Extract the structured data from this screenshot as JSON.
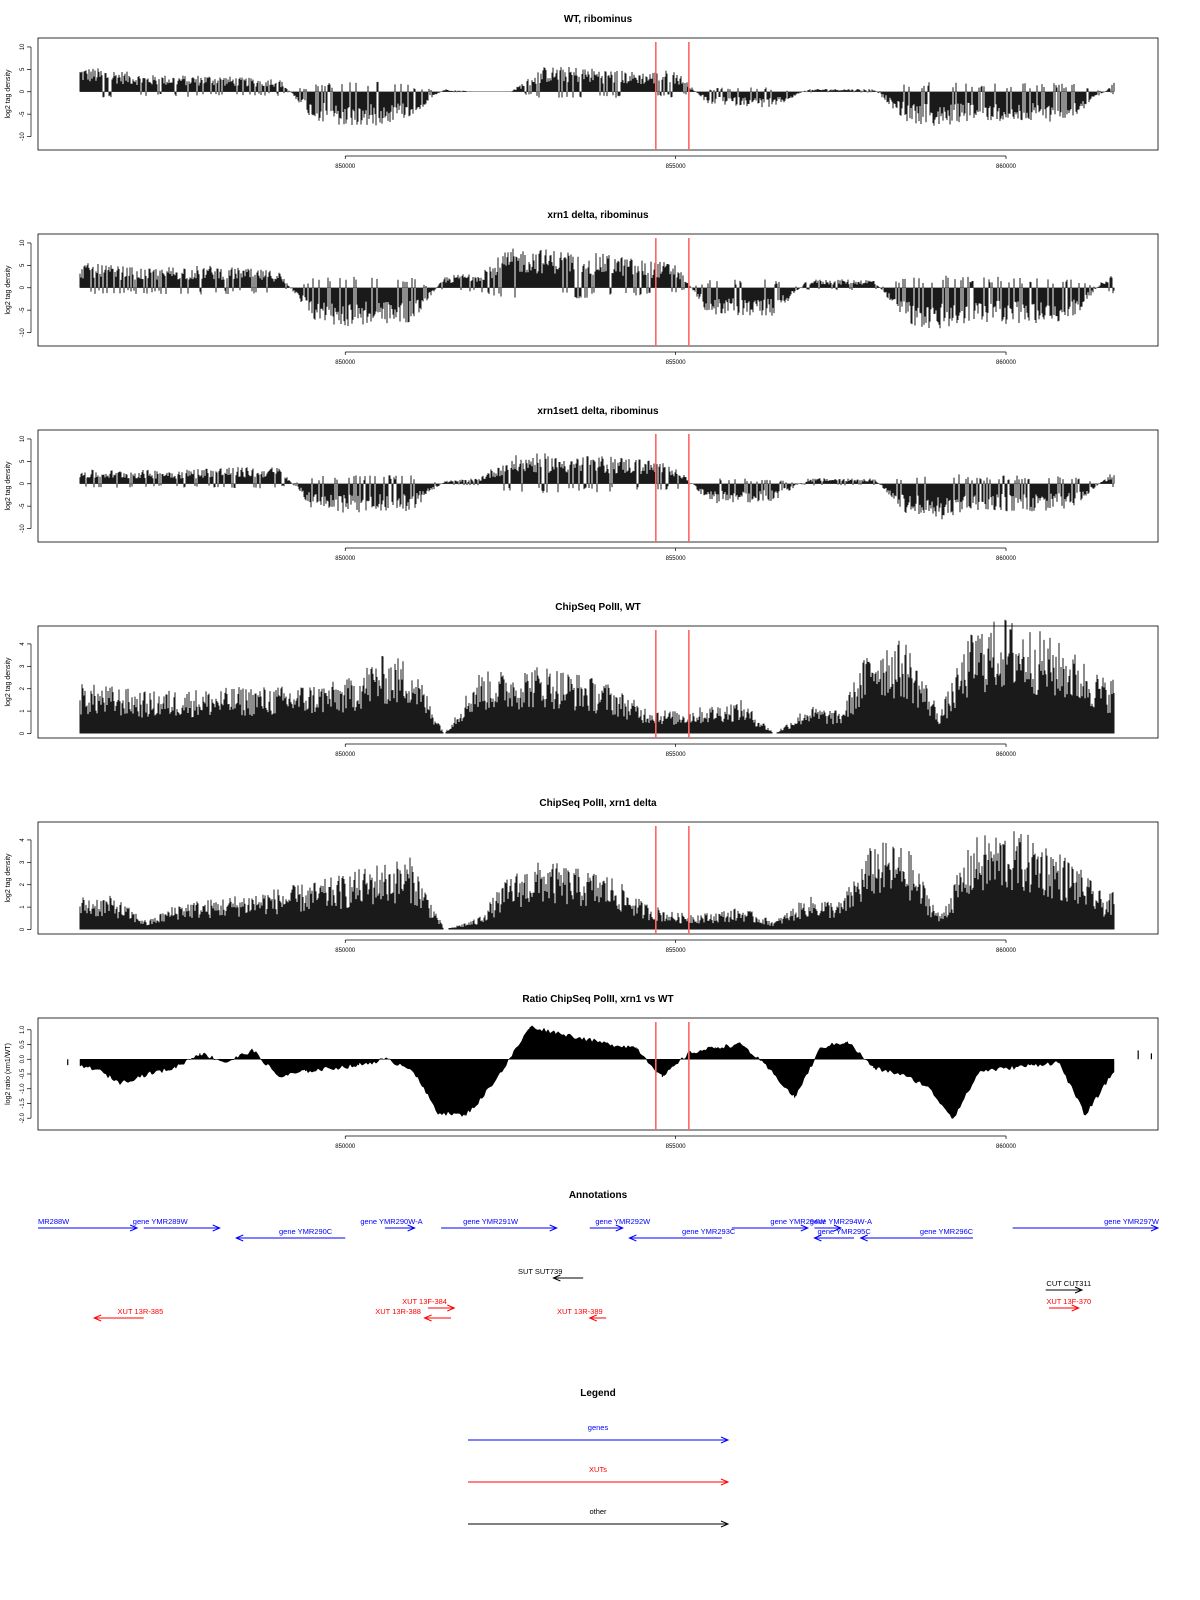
{
  "colors": {
    "bar": "#000000",
    "marker": "#ff6666",
    "gene": "#0000ff",
    "xut": "#ff0000",
    "other": "#000000"
  },
  "chart_data": [
    {
      "type": "bar",
      "title": "WT, ribominus",
      "ylabel": "log2 tag density",
      "ylim": [
        -13,
        12
      ],
      "yticks": [
        "10",
        "5",
        "0",
        "-5",
        "-10"
      ],
      "ytick_values": [
        10,
        5,
        0,
        -5,
        -10
      ],
      "xlim": [
        845350,
        862300
      ],
      "xticks": [
        "850000",
        "855000",
        "860000"
      ],
      "xtick_values": [
        850000,
        855000,
        860000
      ],
      "grid": false,
      "markers": [
        854700,
        855200
      ],
      "x": [
        846000,
        846500,
        847000,
        847500,
        848000,
        848500,
        849000,
        849500,
        850000,
        850500,
        851000,
        851500,
        852000,
        852500,
        853000,
        853500,
        854000,
        854500,
        855000,
        855500,
        856000,
        856500,
        857000,
        857500,
        858000,
        858500,
        859000,
        859500,
        860000,
        860500,
        861000,
        861500,
        862000
      ],
      "values": [
        4.5,
        4,
        3,
        3,
        3,
        2.5,
        2.5,
        -5,
        -6.5,
        -6,
        -4.5,
        0.5,
        0,
        0,
        4.5,
        4.5,
        4,
        3.5,
        4,
        -2.5,
        -2.5,
        -3,
        0.5,
        0.5,
        0.5,
        -5.5,
        -6.5,
        -5,
        -5.5,
        -5.5,
        -5,
        0,
        6.5
      ]
    },
    {
      "type": "bar",
      "title": "xrn1 delta, ribominus",
      "ylabel": "log2 tag density",
      "ylim": [
        -13,
        12
      ],
      "yticks": [
        "10",
        "5",
        "0",
        "-5",
        "-10"
      ],
      "ytick_values": [
        10,
        5,
        0,
        -5,
        -10
      ],
      "xlim": [
        845350,
        862300
      ],
      "xticks": [
        "850000",
        "855000",
        "860000"
      ],
      "xtick_values": [
        850000,
        855000,
        860000
      ],
      "grid": false,
      "markers": [
        854700,
        855200
      ],
      "x": [
        846000,
        846500,
        847000,
        847500,
        848000,
        848500,
        849000,
        849500,
        850000,
        850500,
        851000,
        851500,
        852000,
        852500,
        853000,
        853500,
        854000,
        854500,
        855000,
        855500,
        856000,
        856500,
        857000,
        857500,
        858000,
        858500,
        859000,
        859500,
        860000,
        860500,
        861000,
        861500,
        862000
      ],
      "values": [
        4.5,
        4,
        3.5,
        4,
        4,
        3.5,
        3,
        -6,
        -7,
        -6.5,
        -6.5,
        2,
        3,
        7,
        7,
        6.5,
        6,
        5,
        4.5,
        -5,
        -5,
        -5,
        1.5,
        1.5,
        1.5,
        -6.5,
        -8,
        -6.5,
        -6.5,
        -6.5,
        -6,
        2,
        7
      ]
    },
    {
      "type": "bar",
      "title": "xrn1set1 delta, ribominus",
      "ylabel": "log2 tag density",
      "ylim": [
        -13,
        12
      ],
      "yticks": [
        "10",
        "5",
        "0",
        "-5",
        "-10"
      ],
      "ytick_values": [
        10,
        5,
        0,
        -5,
        -10
      ],
      "xlim": [
        845350,
        862300
      ],
      "xticks": [
        "850000",
        "855000",
        "860000"
      ],
      "xtick_values": [
        850000,
        855000,
        860000
      ],
      "grid": false,
      "markers": [
        854700,
        855200
      ],
      "x": [
        846000,
        846500,
        847000,
        847500,
        848000,
        848500,
        849000,
        849500,
        850000,
        850500,
        851000,
        851500,
        852000,
        852500,
        853000,
        853500,
        854000,
        854500,
        855000,
        855500,
        856000,
        856500,
        857000,
        857500,
        858000,
        858500,
        859000,
        859500,
        860000,
        860500,
        861000,
        861500,
        862000
      ],
      "values": [
        2.5,
        2.5,
        2.5,
        2.5,
        3,
        3,
        3,
        -4.5,
        -5.5,
        -5,
        -5,
        0.5,
        1,
        5,
        5.5,
        5,
        5,
        4.5,
        3.5,
        -3.5,
        -3.5,
        -3,
        1,
        1,
        1,
        -5.5,
        -6.5,
        -5,
        -5,
        -5,
        -4.5,
        1,
        6
      ]
    },
    {
      "type": "bar",
      "title": "ChipSeq PolII, WT",
      "ylabel": "log2 tag density",
      "ylim": [
        -0.2,
        4.8
      ],
      "yticks": [
        "4",
        "3",
        "2",
        "1",
        "0"
      ],
      "ytick_values": [
        4,
        3,
        2,
        1,
        0
      ],
      "xlim": [
        845350,
        862300
      ],
      "xticks": [
        "850000",
        "855000",
        "860000"
      ],
      "xtick_values": [
        850000,
        855000,
        860000
      ],
      "grid": false,
      "markers": [
        854700,
        855200
      ],
      "x": [
        846000,
        846500,
        847000,
        847500,
        848000,
        848500,
        849000,
        849500,
        850000,
        850500,
        851000,
        851500,
        852000,
        852500,
        853000,
        853500,
        854000,
        854500,
        855000,
        855500,
        856000,
        856500,
        857000,
        857500,
        858000,
        858500,
        859000,
        859500,
        860000,
        860500,
        861000,
        861500,
        862000
      ],
      "values": [
        1.8,
        1.7,
        1.5,
        1.6,
        1.6,
        1.7,
        1.7,
        1.8,
        1.9,
        2.8,
        2.7,
        0,
        2.2,
        2.3,
        2.5,
        2.2,
        1.8,
        1,
        0.8,
        1,
        1.2,
        0,
        1,
        0.8,
        3.5,
        3.3,
        0.8,
        3.8,
        4.2,
        3.7,
        3,
        2,
        2.3
      ]
    },
    {
      "type": "bar",
      "title": "ChipSeq PolII, xrn1 delta",
      "ylabel": "log2 tag density",
      "ylim": [
        -0.2,
        4.8
      ],
      "yticks": [
        "4",
        "3",
        "2",
        "1",
        "0"
      ],
      "ytick_values": [
        4,
        3,
        2,
        1,
        0
      ],
      "xlim": [
        845350,
        862300
      ],
      "xticks": [
        "850000",
        "855000",
        "860000"
      ],
      "xtick_values": [
        850000,
        855000,
        860000
      ],
      "grid": false,
      "markers": [
        854700,
        855200
      ],
      "x": [
        846000,
        846500,
        847000,
        847500,
        848000,
        848500,
        849000,
        849500,
        850000,
        850500,
        851000,
        851500,
        852000,
        852500,
        853000,
        853500,
        854000,
        854500,
        855000,
        855500,
        856000,
        856500,
        857000,
        857500,
        858000,
        858500,
        859000,
        859500,
        860000,
        860500,
        861000,
        861500,
        862000
      ],
      "values": [
        1.2,
        1.2,
        0.3,
        1,
        1.1,
        1.3,
        1.5,
        1.7,
        2,
        2.4,
        2.6,
        0,
        0.4,
        2,
        2.5,
        2.2,
        2,
        1,
        0.6,
        0.6,
        0.8,
        0.3,
        1.2,
        1,
        3.2,
        3,
        0.5,
        3.3,
        3.6,
        3.3,
        2.5,
        1.2,
        1.8
      ]
    },
    {
      "type": "area",
      "title": "Ratio ChipSeq PolII, xrn1 vs WT",
      "ylabel": "log2 ratio (xrn1/WT)",
      "ylim": [
        -2.4,
        1.4
      ],
      "yticks": [
        "1.0",
        "0.5",
        "0.0",
        "-0.5",
        "-1.0",
        "-1.5",
        "-2.0"
      ],
      "ytick_values": [
        1,
        0.5,
        0,
        -0.5,
        -1,
        -1.5,
        -2
      ],
      "xlim": [
        845350,
        862300
      ],
      "xticks": [
        "850000",
        "855000",
        "860000"
      ],
      "xtick_values": [
        850000,
        855000,
        860000
      ],
      "grid": false,
      "markers": [
        854700,
        855200
      ],
      "x": [
        845800,
        846200,
        846600,
        847000,
        847400,
        847800,
        848200,
        848600,
        849000,
        849400,
        849800,
        850200,
        850600,
        851000,
        851400,
        851800,
        852000,
        852400,
        852800,
        853200,
        853600,
        854000,
        854400,
        854800,
        855200,
        855600,
        856000,
        856400,
        856800,
        857200,
        857600,
        858000,
        858400,
        858800,
        859200,
        859600,
        860000,
        860400,
        860800,
        861200,
        861600,
        862000,
        862200
      ],
      "values": [
        -0.2,
        -0.3,
        -0.8,
        -0.5,
        -0.3,
        0.2,
        -0.1,
        0.3,
        -0.6,
        -0.4,
        -0.3,
        -0.2,
        0,
        -0.3,
        -1.8,
        -1.9,
        -1.5,
        -0.3,
        1.1,
        0.9,
        0.7,
        0.5,
        0.4,
        -0.6,
        0.2,
        0.4,
        0.5,
        -0.3,
        -1.3,
        0.4,
        0.6,
        -0.3,
        -0.5,
        -0.9,
        -2.0,
        -0.4,
        -0.3,
        -0.2,
        -0.1,
        -1.9,
        -0.5,
        0.3,
        0.2
      ]
    }
  ],
  "annotations": {
    "title": "Annotations",
    "genes": [
      {
        "label": "MR288W",
        "lx": 845350,
        "x1": 845350,
        "x2": 846850,
        "dir": "right",
        "row": 0
      },
      {
        "label": "gene YMR289W",
        "lx": 847200,
        "x1": 846950,
        "x2": 848100,
        "dir": "right",
        "row": 0
      },
      {
        "label": "gene YMR290C",
        "lx": 849400,
        "x1": 848350,
        "x2": 850000,
        "dir": "left",
        "row": 1
      },
      {
        "label": "gene YMR290W-A",
        "lx": 850700,
        "x1": 850600,
        "x2": 851050,
        "dir": "right",
        "row": 0
      },
      {
        "label": "gene YMR291W",
        "lx": 852200,
        "x1": 851450,
        "x2": 853200,
        "dir": "right",
        "row": 0
      },
      {
        "label": "gene YMR292W",
        "lx": 854200,
        "x1": 853700,
        "x2": 854200,
        "dir": "right",
        "row": 0
      },
      {
        "label": "gene YMR293C",
        "lx": 855500,
        "x1": 854300,
        "x2": 855700,
        "dir": "left",
        "row": 1
      },
      {
        "label": "gene YMR294W",
        "lx": 856850,
        "x1": 855850,
        "x2": 857000,
        "dir": "right",
        "row": 0
      },
      {
        "label": "gene YMR294W-A",
        "lx": 857500,
        "x1": 857100,
        "x2": 857500,
        "dir": "right",
        "row": 0
      },
      {
        "label": "gene YMR295C",
        "lx": 857550,
        "x1": 857100,
        "x2": 857700,
        "dir": "left",
        "row": 1
      },
      {
        "label": "gene YMR296C",
        "lx": 859100,
        "x1": 857800,
        "x2": 859500,
        "dir": "left",
        "row": 1
      },
      {
        "label": "gene YMR297W",
        "lx": 861900,
        "x1": 860100,
        "x2": 862300,
        "dir": "right",
        "row": 0
      }
    ],
    "others": [
      {
        "label": "SUT SUT739",
        "lx": 852950,
        "x1": 853150,
        "x2": 853600,
        "dir": "left",
        "row": 2
      },
      {
        "label": "CUT CUT311",
        "lx": 860950,
        "x1": 860600,
        "x2": 861150,
        "dir": "right",
        "row": 3
      }
    ],
    "xuts": [
      {
        "label": "XUT 13R-385",
        "lx": 846900,
        "x1": 846200,
        "x2": 846950,
        "dir": "left",
        "row": 5
      },
      {
        "label": "XUT 13F-384",
        "lx": 851200,
        "x1": 851250,
        "x2": 851650,
        "dir": "right",
        "row": 4
      },
      {
        "label": "XUT 13R-388",
        "lx": 850800,
        "x1": 851200,
        "x2": 851600,
        "dir": "left",
        "row": 5
      },
      {
        "label": "XUT 13R-389",
        "lx": 853550,
        "x1": 853700,
        "x2": 853950,
        "dir": "left",
        "row": 5
      },
      {
        "label": "XUT 13F-370",
        "lx": 860950,
        "x1": 860650,
        "x2": 861100,
        "dir": "right",
        "row": 4
      }
    ]
  },
  "legend": {
    "title": "Legend",
    "items": [
      {
        "label": "genes",
        "kind": "gene"
      },
      {
        "label": "XUTs",
        "kind": "xut"
      },
      {
        "label": "other",
        "kind": "other"
      }
    ]
  }
}
